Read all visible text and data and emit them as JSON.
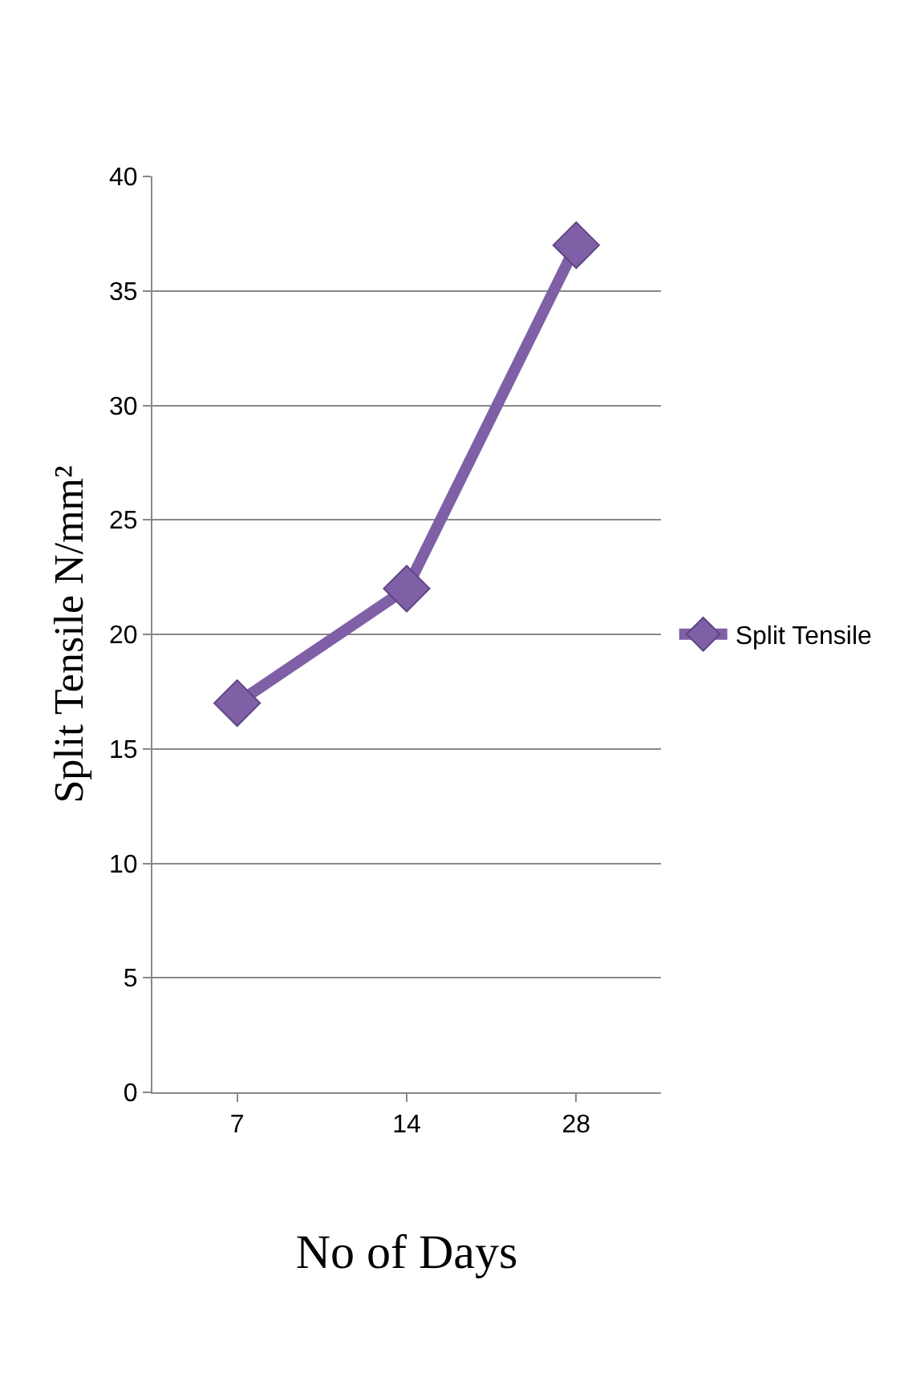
{
  "chart_data": {
    "type": "line",
    "xlabel": "No of Days",
    "ylabel": "Split Tensile N/mm²",
    "categories": [
      "7",
      "14",
      "28"
    ],
    "series": [
      {
        "name": "Split Tensile",
        "color": "#7f5fa6",
        "values": [
          17,
          22,
          37
        ]
      }
    ],
    "ylim": [
      0,
      40
    ],
    "yticks": [
      0,
      5,
      10,
      15,
      20,
      25,
      30,
      35,
      40
    ],
    "grid": "y",
    "legend": "right",
    "marker": "diamond",
    "line_style": "solid"
  }
}
